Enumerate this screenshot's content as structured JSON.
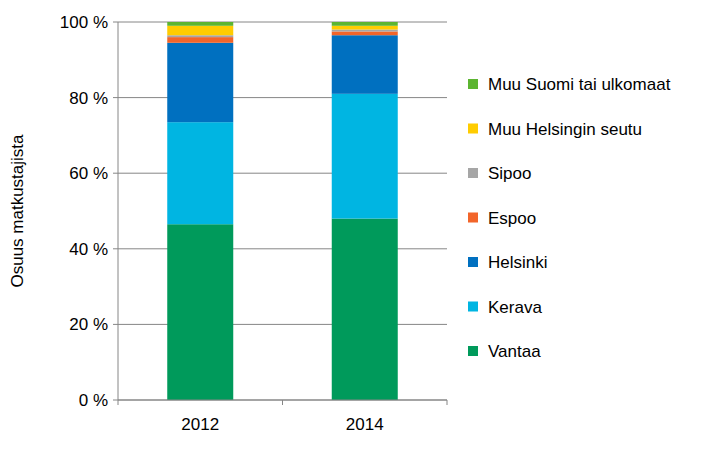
{
  "chart_data": {
    "type": "bar",
    "stacked": true,
    "grid": true,
    "legend": "right",
    "y_label": "Osuus matkustajista",
    "categories": [
      "2012",
      "2014"
    ],
    "series": [
      {
        "name": "Vantaa",
        "color": "#009a5b",
        "values": [
          46.5,
          48
        ]
      },
      {
        "name": "Kerava",
        "color": "#00b5e2",
        "values": [
          27,
          33
        ]
      },
      {
        "name": "Helsinki",
        "color": "#0070c0",
        "values": [
          21,
          15.5
        ]
      },
      {
        "name": "Espoo",
        "color": "#f2652a",
        "values": [
          1.5,
          1
        ]
      },
      {
        "name": "Sipoo",
        "color": "#a6a6a6",
        "values": [
          0.5,
          0.5
        ]
      },
      {
        "name": "Muu Helsingin seutu",
        "color": "#ffcc00",
        "values": [
          2.5,
          1
        ]
      },
      {
        "name": "Muu Suomi tai ulkomaat",
        "color": "#5cb531",
        "values": [
          1,
          1
        ]
      }
    ],
    "ylim": [
      0,
      100
    ],
    "yticks": [
      {
        "value": 0,
        "label": "0 %"
      },
      {
        "value": 20,
        "label": "20 %"
      },
      {
        "value": 40,
        "label": "40 %"
      },
      {
        "value": 60,
        "label": "60 %"
      },
      {
        "value": 80,
        "label": "80 %"
      },
      {
        "value": 100,
        "label": "100 %"
      }
    ]
  }
}
